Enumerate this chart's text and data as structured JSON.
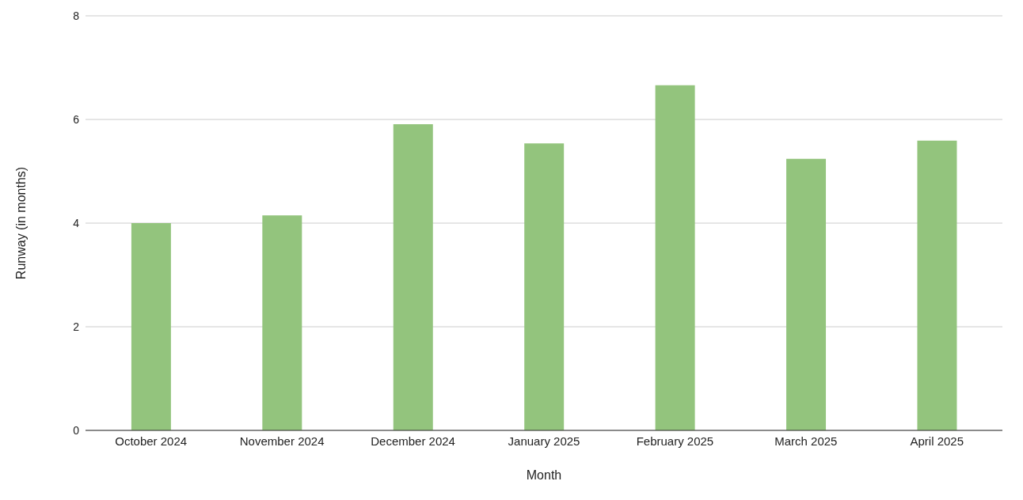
{
  "chart_data": {
    "type": "bar",
    "xlabel": "Month",
    "ylabel": "Runway (in months)",
    "categories": [
      "October 2024",
      "November 2024",
      "December 2024",
      "January 2025",
      "February 2025",
      "March 2025",
      "April 2025"
    ],
    "values": [
      4.0,
      4.15,
      5.91,
      5.54,
      6.66,
      5.24,
      5.59
    ],
    "color": "#93c47d",
    "ylim": [
      0,
      8
    ],
    "yticks": [
      0,
      2,
      4,
      6,
      8
    ],
    "grid": "y",
    "legend": false
  }
}
